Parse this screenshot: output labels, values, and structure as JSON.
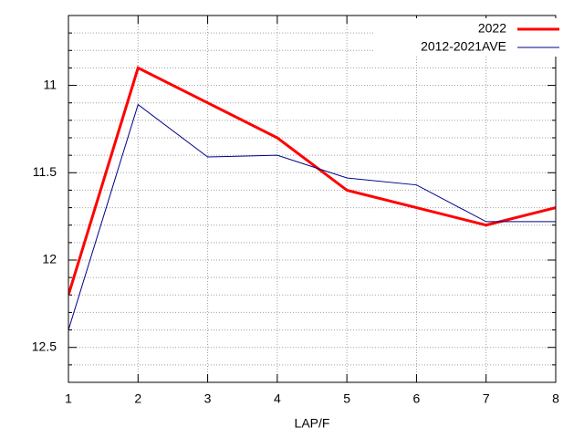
{
  "chart_data": {
    "type": "line",
    "xlabel": "LAP/F",
    "x": [
      1,
      2,
      3,
      4,
      5,
      6,
      7,
      8
    ],
    "xlim": [
      1,
      8
    ],
    "xticks": [
      1,
      2,
      3,
      4,
      5,
      6,
      7,
      8
    ],
    "ylim": [
      12.7,
      10.6
    ],
    "yticks": [
      11,
      11.5,
      12,
      12.5
    ],
    "minor_tics": 5,
    "grid": true,
    "legend": "top-right",
    "series": [
      {
        "name": "2022",
        "color": "#ff0000",
        "width": 3,
        "values": [
          12.2,
          10.9,
          11.1,
          11.3,
          11.6,
          11.7,
          11.8,
          11.7
        ]
      },
      {
        "name": "2012-2021AVE",
        "color": "#00008b",
        "width": 1,
        "values": [
          12.4,
          11.11,
          11.41,
          11.4,
          11.53,
          11.57,
          11.78,
          11.78
        ]
      }
    ]
  }
}
